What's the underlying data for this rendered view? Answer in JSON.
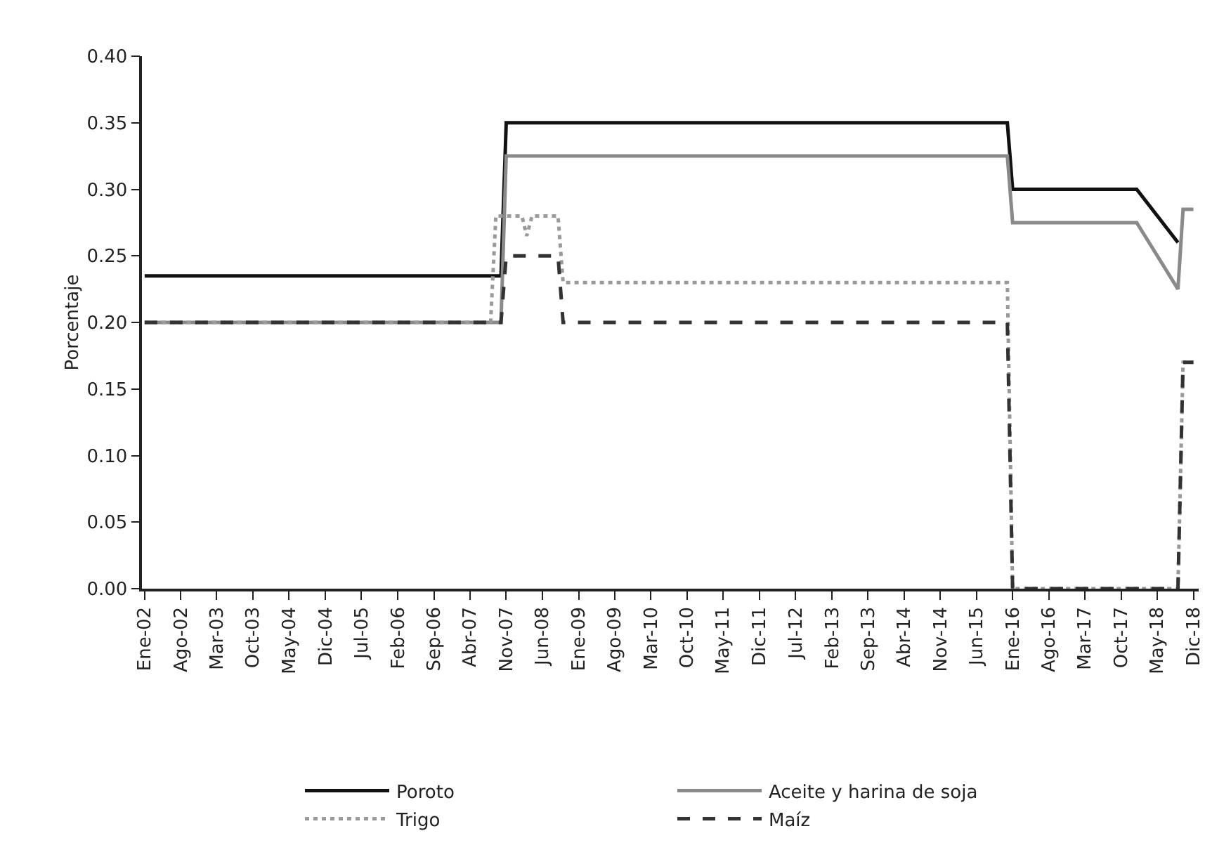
{
  "chart_data": {
    "type": "line",
    "ylabel": "Porcentaje",
    "xlim": [
      "2001-12-16",
      "2019-01-01"
    ],
    "xticks": [
      {
        "value": "2002-01",
        "label": "Ene-02"
      },
      {
        "value": "2002-08",
        "label": "Ago-02"
      },
      {
        "value": "2003-03",
        "label": "Mar-03"
      },
      {
        "value": "2003-10",
        "label": "Oct-03"
      },
      {
        "value": "2004-05",
        "label": "May-04"
      },
      {
        "value": "2004-12",
        "label": "Dic-04"
      },
      {
        "value": "2005-07",
        "label": "Jul-05"
      },
      {
        "value": "2006-02",
        "label": "Feb-06"
      },
      {
        "value": "2006-09",
        "label": "Sep-06"
      },
      {
        "value": "2007-04",
        "label": "Abr-07"
      },
      {
        "value": "2007-11",
        "label": "Nov-07"
      },
      {
        "value": "2008-06",
        "label": "Jun-08"
      },
      {
        "value": "2009-01",
        "label": "Ene-09"
      },
      {
        "value": "2009-08",
        "label": "Ago-09"
      },
      {
        "value": "2010-03",
        "label": "Mar-10"
      },
      {
        "value": "2010-10",
        "label": "Oct-10"
      },
      {
        "value": "2011-05",
        "label": "May-11"
      },
      {
        "value": "2011-12",
        "label": "Dic-11"
      },
      {
        "value": "2012-07",
        "label": "Jul-12"
      },
      {
        "value": "2013-02",
        "label": "Feb-13"
      },
      {
        "value": "2013-09",
        "label": "Sep-13"
      },
      {
        "value": "2014-04",
        "label": "Abr-14"
      },
      {
        "value": "2014-11",
        "label": "Nov-14"
      },
      {
        "value": "2015-06",
        "label": "Jun-15"
      },
      {
        "value": "2016-01",
        "label": "Ene-16"
      },
      {
        "value": "2016-08",
        "label": "Ago-16"
      },
      {
        "value": "2017-03",
        "label": "Mar-17"
      },
      {
        "value": "2017-10",
        "label": "Oct-17"
      },
      {
        "value": "2018-05",
        "label": "May-18"
      },
      {
        "value": "2018-12",
        "label": "Dic-18"
      }
    ],
    "ylim": [
      0,
      0.4
    ],
    "yticks": [
      {
        "value": 0,
        "label": "0.00"
      },
      {
        "value": 0.05,
        "label": "0.05"
      },
      {
        "value": 0.1,
        "label": "0.10"
      },
      {
        "value": 0.15,
        "label": "0.15"
      },
      {
        "value": 0.2,
        "label": "0.20"
      },
      {
        "value": 0.25,
        "label": "0.25"
      },
      {
        "value": 0.3,
        "label": "0.30"
      },
      {
        "value": 0.35,
        "label": "0.35"
      },
      {
        "value": 0.4,
        "label": "0.40"
      }
    ],
    "grid": false,
    "legend": "bottom",
    "marker": "none",
    "series": [
      {
        "name": "Poroto",
        "color": "#111111",
        "line_style": "solid",
        "x": [
          "2002-01",
          "2007-10",
          "2007-11",
          "2015-12",
          "2016-01",
          "2018-01",
          "2018-09"
        ],
        "values": [
          0.235,
          0.235,
          0.35,
          0.35,
          0.3,
          0.3,
          0.26
        ]
      },
      {
        "name": "Aceite y harina de soja",
        "color": "#8a8a8a",
        "line_style": "solid",
        "x": [
          "2002-01",
          "2007-10",
          "2007-11",
          "2015-12",
          "2016-01",
          "2018-01",
          "2018-09",
          "2018-10",
          "2018-12"
        ],
        "values": [
          0.2,
          0.2,
          0.325,
          0.325,
          0.275,
          0.275,
          0.225,
          0.285,
          0.285
        ]
      },
      {
        "name": "Trigo",
        "color": "#9a9a9a",
        "line_style": "dotted",
        "x": [
          "2002-01",
          "2007-08",
          "2007-09",
          "2008-02",
          "2008-03",
          "2008-04",
          "2008-09",
          "2008-10",
          "2015-12",
          "2016-01",
          "2018-09",
          "2018-10",
          "2018-12"
        ],
        "values": [
          0.2,
          0.2,
          0.28,
          0.28,
          0.265,
          0.28,
          0.28,
          0.23,
          0.23,
          0,
          0,
          0.17,
          0.17
        ]
      },
      {
        "name": "Maíz",
        "color": "#333333",
        "line_style": "dashed",
        "x": [
          "2002-01",
          "2007-10",
          "2007-11",
          "2008-09",
          "2008-10",
          "2015-12",
          "2016-01",
          "2018-09",
          "2018-10",
          "2018-12"
        ],
        "values": [
          0.2,
          0.2,
          0.25,
          0.25,
          0.2,
          0.2,
          0,
          0,
          0.17,
          0.17
        ]
      }
    ]
  }
}
